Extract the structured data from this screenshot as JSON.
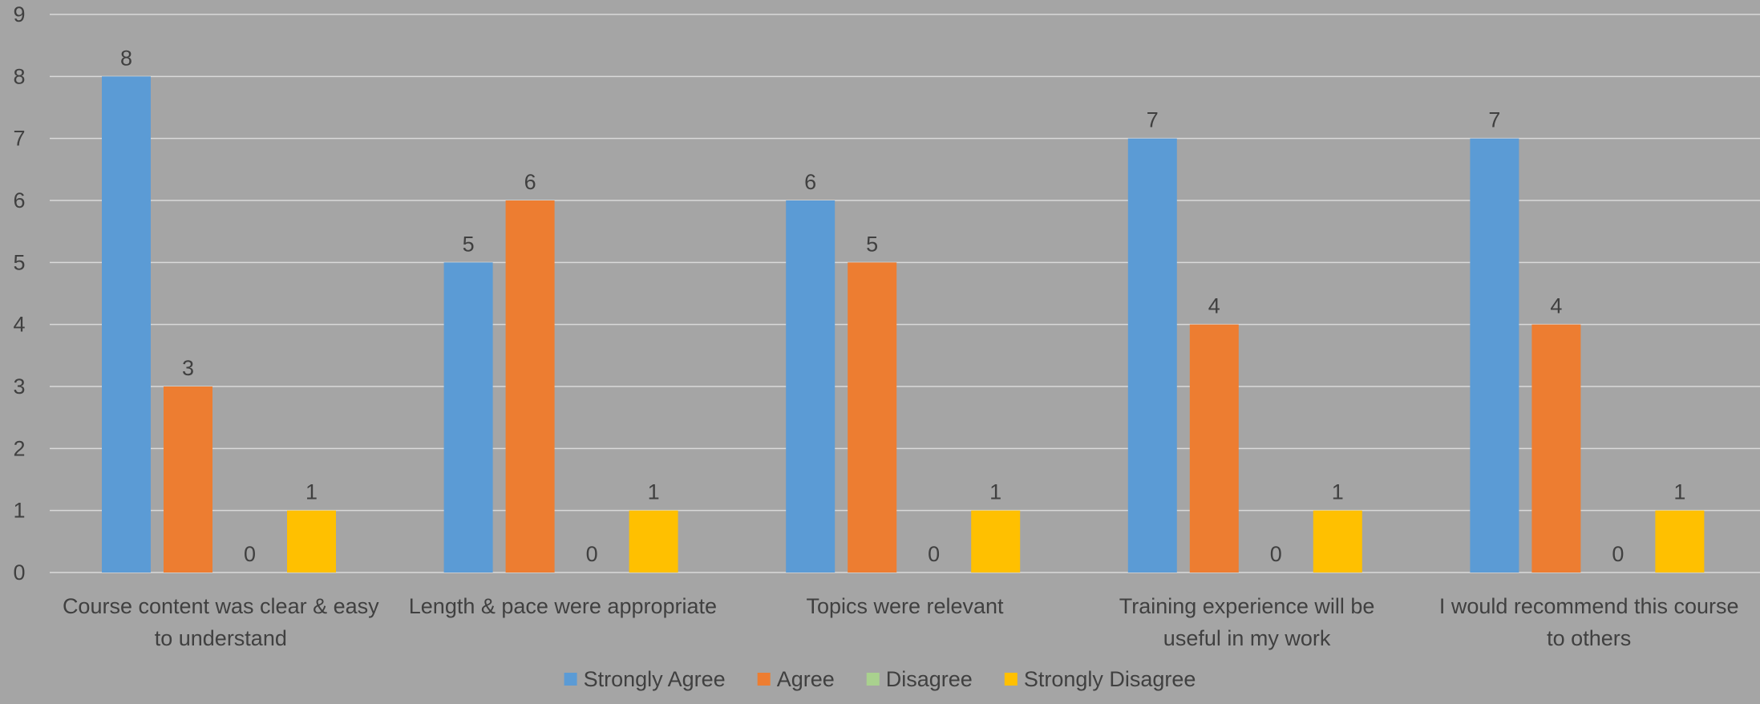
{
  "chart_data": {
    "type": "bar",
    "title": "",
    "xlabel": "",
    "ylabel": "",
    "ylim": [
      0,
      9
    ],
    "yticks": [
      0,
      1,
      2,
      3,
      4,
      5,
      6,
      7,
      8,
      9
    ],
    "grid": true,
    "legend_position": "bottom",
    "data_labels": true,
    "categories": [
      [
        "Course content was clear & easy",
        "to understand"
      ],
      [
        "Length & pace were appropriate"
      ],
      [
        "Topics were relevant"
      ],
      [
        "Training experience will be",
        "useful in my work"
      ],
      [
        "I would recommend this course",
        "to others"
      ]
    ],
    "series": [
      {
        "name": "Strongly Agree",
        "color": "#5b9bd5",
        "values": [
          8,
          5,
          6,
          7,
          7
        ]
      },
      {
        "name": "Agree",
        "color": "#ed7d31",
        "values": [
          3,
          6,
          5,
          4,
          4
        ]
      },
      {
        "name": "Disagree",
        "color": "#a9d18e",
        "values": [
          0,
          0,
          0,
          0,
          0
        ]
      },
      {
        "name": "Strongly Disagree",
        "color": "#ffc000",
        "values": [
          1,
          1,
          1,
          1,
          1
        ]
      }
    ],
    "colors": {
      "background": "#a5a5a5",
      "gridline": "#d9d9d9",
      "text": "#404040"
    }
  }
}
